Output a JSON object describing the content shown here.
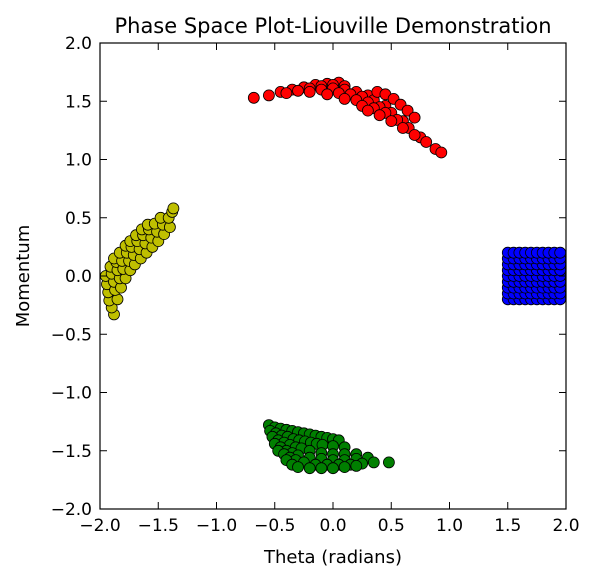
{
  "chart_data": {
    "type": "scatter",
    "title": "Phase Space Plot-Liouville Demonstration",
    "xlabel": "Theta (radians)",
    "ylabel": "Momentum",
    "xlim": [
      -2.0,
      2.0
    ],
    "ylim": [
      -2.0,
      2.0
    ],
    "xticks": [
      -2.0,
      -1.5,
      -1.0,
      -0.5,
      0.0,
      0.5,
      1.0,
      1.5,
      2.0
    ],
    "yticks": [
      -2.0,
      -1.5,
      -1.0,
      -0.5,
      0.0,
      0.5,
      1.0,
      1.5,
      2.0
    ],
    "xtick_labels": [
      "−2.0",
      "−1.5",
      "−1.0",
      "−0.5",
      "0.0",
      "0.5",
      "1.0",
      "1.5",
      "2.0"
    ],
    "ytick_labels": [
      "−2.0",
      "−1.5",
      "−1.0",
      "−0.5",
      "0.0",
      "0.5",
      "1.0",
      "1.5",
      "2.0"
    ],
    "grid": false,
    "series": [
      {
        "color": "#0000ff",
        "points": [
          [
            1.5,
            -0.2
          ],
          [
            1.55,
            -0.2
          ],
          [
            1.6,
            -0.2
          ],
          [
            1.65,
            -0.2
          ],
          [
            1.7,
            -0.2
          ],
          [
            1.75,
            -0.2
          ],
          [
            1.8,
            -0.2
          ],
          [
            1.85,
            -0.2
          ],
          [
            1.9,
            -0.2
          ],
          [
            1.95,
            -0.2
          ],
          [
            1.5,
            -0.15
          ],
          [
            1.55,
            -0.15
          ],
          [
            1.6,
            -0.15
          ],
          [
            1.65,
            -0.15
          ],
          [
            1.7,
            -0.15
          ],
          [
            1.75,
            -0.15
          ],
          [
            1.8,
            -0.15
          ],
          [
            1.85,
            -0.15
          ],
          [
            1.9,
            -0.15
          ],
          [
            1.95,
            -0.15
          ],
          [
            1.5,
            -0.1
          ],
          [
            1.55,
            -0.1
          ],
          [
            1.6,
            -0.1
          ],
          [
            1.65,
            -0.1
          ],
          [
            1.7,
            -0.1
          ],
          [
            1.75,
            -0.1
          ],
          [
            1.8,
            -0.1
          ],
          [
            1.85,
            -0.1
          ],
          [
            1.9,
            -0.1
          ],
          [
            1.95,
            -0.1
          ],
          [
            1.5,
            -0.05
          ],
          [
            1.55,
            -0.05
          ],
          [
            1.6,
            -0.05
          ],
          [
            1.65,
            -0.05
          ],
          [
            1.7,
            -0.05
          ],
          [
            1.75,
            -0.05
          ],
          [
            1.8,
            -0.05
          ],
          [
            1.85,
            -0.05
          ],
          [
            1.9,
            -0.05
          ],
          [
            1.95,
            -0.05
          ],
          [
            1.5,
            0.0
          ],
          [
            1.55,
            0.0
          ],
          [
            1.6,
            0.0
          ],
          [
            1.65,
            0.0
          ],
          [
            1.7,
            0.0
          ],
          [
            1.75,
            0.0
          ],
          [
            1.8,
            0.0
          ],
          [
            1.85,
            0.0
          ],
          [
            1.9,
            0.0
          ],
          [
            1.95,
            0.0
          ],
          [
            1.5,
            0.05
          ],
          [
            1.55,
            0.05
          ],
          [
            1.6,
            0.05
          ],
          [
            1.65,
            0.05
          ],
          [
            1.7,
            0.05
          ],
          [
            1.75,
            0.05
          ],
          [
            1.8,
            0.05
          ],
          [
            1.85,
            0.05
          ],
          [
            1.9,
            0.05
          ],
          [
            1.95,
            0.05
          ],
          [
            1.5,
            0.1
          ],
          [
            1.55,
            0.1
          ],
          [
            1.6,
            0.1
          ],
          [
            1.65,
            0.1
          ],
          [
            1.7,
            0.1
          ],
          [
            1.75,
            0.1
          ],
          [
            1.8,
            0.1
          ],
          [
            1.85,
            0.1
          ],
          [
            1.9,
            0.1
          ],
          [
            1.95,
            0.1
          ],
          [
            1.5,
            0.15
          ],
          [
            1.55,
            0.15
          ],
          [
            1.6,
            0.15
          ],
          [
            1.65,
            0.15
          ],
          [
            1.7,
            0.15
          ],
          [
            1.75,
            0.15
          ],
          [
            1.8,
            0.15
          ],
          [
            1.85,
            0.15
          ],
          [
            1.9,
            0.15
          ],
          [
            1.95,
            0.15
          ],
          [
            1.5,
            0.2
          ],
          [
            1.55,
            0.2
          ],
          [
            1.6,
            0.2
          ],
          [
            1.65,
            0.2
          ],
          [
            1.7,
            0.2
          ],
          [
            1.75,
            0.2
          ],
          [
            1.8,
            0.2
          ],
          [
            1.85,
            0.2
          ],
          [
            1.9,
            0.2
          ],
          [
            1.95,
            0.2
          ]
        ]
      },
      {
        "color": "#ff0000",
        "points": [
          [
            -0.68,
            1.53
          ],
          [
            -0.55,
            1.55
          ],
          [
            -0.45,
            1.58
          ],
          [
            -0.35,
            1.6
          ],
          [
            -0.25,
            1.62
          ],
          [
            -0.15,
            1.64
          ],
          [
            -0.05,
            1.65
          ],
          [
            0.05,
            1.66
          ],
          [
            -0.4,
            1.57
          ],
          [
            -0.3,
            1.59
          ],
          [
            -0.2,
            1.61
          ],
          [
            -0.1,
            1.63
          ],
          [
            0.0,
            1.64
          ],
          [
            0.1,
            1.63
          ],
          [
            -0.2,
            1.58
          ],
          [
            -0.1,
            1.6
          ],
          [
            0.0,
            1.61
          ],
          [
            0.1,
            1.6
          ],
          [
            0.2,
            1.58
          ],
          [
            0.3,
            1.55
          ],
          [
            -0.05,
            1.56
          ],
          [
            0.05,
            1.57
          ],
          [
            0.15,
            1.56
          ],
          [
            0.25,
            1.54
          ],
          [
            0.35,
            1.51
          ],
          [
            0.45,
            1.46
          ],
          [
            0.1,
            1.52
          ],
          [
            0.2,
            1.51
          ],
          [
            0.3,
            1.49
          ],
          [
            0.4,
            1.45
          ],
          [
            0.5,
            1.4
          ],
          [
            0.6,
            1.33
          ],
          [
            0.25,
            1.46
          ],
          [
            0.35,
            1.44
          ],
          [
            0.45,
            1.4
          ],
          [
            0.55,
            1.34
          ],
          [
            0.65,
            1.27
          ],
          [
            0.75,
            1.19
          ],
          [
            0.38,
            1.58
          ],
          [
            0.45,
            1.56
          ],
          [
            0.52,
            1.52
          ],
          [
            0.58,
            1.47
          ],
          [
            0.64,
            1.42
          ],
          [
            0.7,
            1.36
          ],
          [
            0.3,
            1.42
          ],
          [
            0.4,
            1.38
          ],
          [
            0.5,
            1.33
          ],
          [
            0.6,
            1.27
          ],
          [
            0.7,
            1.21
          ],
          [
            0.8,
            1.15
          ],
          [
            0.88,
            1.09
          ],
          [
            0.93,
            1.06
          ]
        ]
      },
      {
        "color": "#bfbf00",
        "points": [
          [
            -1.88,
            -0.33
          ],
          [
            -1.9,
            -0.27
          ],
          [
            -1.92,
            -0.21
          ],
          [
            -1.93,
            -0.14
          ],
          [
            -1.94,
            -0.07
          ],
          [
            -1.95,
            0.0
          ],
          [
            -1.85,
            -0.2
          ],
          [
            -1.87,
            -0.12
          ],
          [
            -1.88,
            -0.05
          ],
          [
            -1.9,
            0.02
          ],
          [
            -1.91,
            0.08
          ],
          [
            -1.82,
            -0.1
          ],
          [
            -1.83,
            -0.02
          ],
          [
            -1.85,
            0.05
          ],
          [
            -1.86,
            0.12
          ],
          [
            -1.88,
            0.15
          ],
          [
            -1.78,
            -0.02
          ],
          [
            -1.8,
            0.06
          ],
          [
            -1.81,
            0.13
          ],
          [
            -1.83,
            0.2
          ],
          [
            -1.74,
            0.05
          ],
          [
            -1.75,
            0.13
          ],
          [
            -1.77,
            0.2
          ],
          [
            -1.78,
            0.26
          ],
          [
            -1.7,
            0.1
          ],
          [
            -1.71,
            0.18
          ],
          [
            -1.73,
            0.25
          ],
          [
            -1.74,
            0.3
          ],
          [
            -1.65,
            0.15
          ],
          [
            -1.66,
            0.23
          ],
          [
            -1.68,
            0.3
          ],
          [
            -1.69,
            0.35
          ],
          [
            -1.6,
            0.2
          ],
          [
            -1.61,
            0.28
          ],
          [
            -1.63,
            0.35
          ],
          [
            -1.64,
            0.4
          ],
          [
            -1.55,
            0.25
          ],
          [
            -1.56,
            0.33
          ],
          [
            -1.58,
            0.4
          ],
          [
            -1.59,
            0.44
          ],
          [
            -1.5,
            0.3
          ],
          [
            -1.51,
            0.38
          ],
          [
            -1.53,
            0.45
          ],
          [
            -1.45,
            0.36
          ],
          [
            -1.46,
            0.44
          ],
          [
            -1.48,
            0.5
          ],
          [
            -1.4,
            0.42
          ],
          [
            -1.41,
            0.5
          ],
          [
            -1.38,
            0.55
          ],
          [
            -1.37,
            0.58
          ]
        ]
      },
      {
        "color": "#007f00",
        "points": [
          [
            -0.55,
            -1.28
          ],
          [
            -0.5,
            -1.3
          ],
          [
            -0.45,
            -1.31
          ],
          [
            -0.4,
            -1.32
          ],
          [
            -0.35,
            -1.33
          ],
          [
            -0.3,
            -1.34
          ],
          [
            -0.25,
            -1.35
          ],
          [
            -0.2,
            -1.36
          ],
          [
            -0.15,
            -1.37
          ],
          [
            -0.1,
            -1.38
          ],
          [
            -0.05,
            -1.39
          ],
          [
            0.0,
            -1.4
          ],
          [
            0.05,
            -1.41
          ],
          [
            -0.54,
            -1.33
          ],
          [
            -0.49,
            -1.35
          ],
          [
            -0.44,
            -1.37
          ],
          [
            -0.39,
            -1.38
          ],
          [
            -0.34,
            -1.4
          ],
          [
            -0.29,
            -1.41
          ],
          [
            -0.24,
            -1.42
          ],
          [
            -0.19,
            -1.43
          ],
          [
            -0.14,
            -1.44
          ],
          [
            -0.09,
            -1.45
          ],
          [
            0.0,
            -1.46
          ],
          [
            0.1,
            -1.47
          ],
          [
            -0.52,
            -1.38
          ],
          [
            -0.47,
            -1.41
          ],
          [
            -0.42,
            -1.43
          ],
          [
            -0.37,
            -1.45
          ],
          [
            -0.32,
            -1.47
          ],
          [
            -0.27,
            -1.48
          ],
          [
            -0.2,
            -1.5
          ],
          [
            -0.1,
            -1.52
          ],
          [
            0.0,
            -1.53
          ],
          [
            0.1,
            -1.53
          ],
          [
            0.2,
            -1.53
          ],
          [
            -0.5,
            -1.44
          ],
          [
            -0.45,
            -1.47
          ],
          [
            -0.4,
            -1.5
          ],
          [
            -0.35,
            -1.52
          ],
          [
            -0.3,
            -1.54
          ],
          [
            -0.2,
            -1.56
          ],
          [
            -0.1,
            -1.57
          ],
          [
            0.0,
            -1.58
          ],
          [
            0.1,
            -1.58
          ],
          [
            0.2,
            -1.57
          ],
          [
            0.3,
            -1.56
          ],
          [
            -0.47,
            -1.5
          ],
          [
            -0.42,
            -1.53
          ],
          [
            -0.37,
            -1.56
          ],
          [
            -0.32,
            -1.58
          ],
          [
            -0.25,
            -1.6
          ],
          [
            -0.15,
            -1.62
          ],
          [
            -0.05,
            -1.62
          ],
          [
            0.05,
            -1.62
          ],
          [
            0.15,
            -1.62
          ],
          [
            0.25,
            -1.61
          ],
          [
            0.35,
            -1.6
          ],
          [
            0.48,
            -1.6
          ],
          [
            -0.4,
            -1.58
          ],
          [
            -0.35,
            -1.62
          ],
          [
            -0.3,
            -1.64
          ],
          [
            -0.2,
            -1.65
          ],
          [
            -0.1,
            -1.65
          ],
          [
            0.0,
            -1.65
          ],
          [
            0.1,
            -1.64
          ],
          [
            0.2,
            -1.63
          ]
        ]
      }
    ]
  }
}
